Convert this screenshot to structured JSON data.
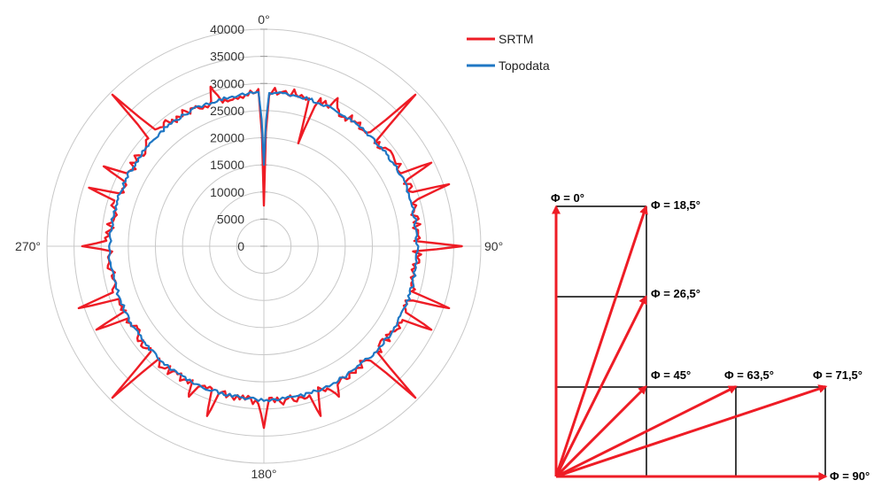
{
  "chart_data": [
    {
      "type": "radar",
      "angle_labels": [
        "0°",
        "90°",
        "180°",
        "270°"
      ],
      "radial_ticks": [
        "0",
        "5000",
        "10000",
        "15000",
        "20000",
        "25000",
        "30000",
        "35000",
        "40000"
      ],
      "rlim": [
        0,
        40000
      ],
      "angle_step_deg": 1,
      "legend_position": "top-right",
      "series": [
        {
          "name": "SRTM",
          "color": "#ee1c25",
          "base_radius": 28500,
          "noise_amplitude": 800,
          "spikes": [
            {
              "angle": 0,
              "radius": 7500
            },
            {
              "angle": 18.5,
              "radius": 20000
            },
            {
              "angle": 26.5,
              "radius": 30500
            },
            {
              "angle": 45,
              "radius": 39500
            },
            {
              "angle": 63.5,
              "radius": 34500
            },
            {
              "angle": 71.5,
              "radius": 36000
            },
            {
              "angle": 90,
              "radius": 36500
            },
            {
              "angle": 108.5,
              "radius": 36000
            },
            {
              "angle": 116.5,
              "radius": 34500
            },
            {
              "angle": 135,
              "radius": 39500
            },
            {
              "angle": 153.5,
              "radius": 31000
            },
            {
              "angle": 161.5,
              "radius": 33000
            },
            {
              "angle": 180,
              "radius": 33500
            },
            {
              "angle": 198.5,
              "radius": 33000
            },
            {
              "angle": 206.5,
              "radius": 31000
            },
            {
              "angle": 225,
              "radius": 39500
            },
            {
              "angle": 243.5,
              "radius": 34500
            },
            {
              "angle": 251.5,
              "radius": 36000
            },
            {
              "angle": 270,
              "radius": 33500
            },
            {
              "angle": 288.5,
              "radius": 34000
            },
            {
              "angle": 296.5,
              "radius": 33000
            },
            {
              "angle": 315,
              "radius": 39500
            },
            {
              "angle": 333.5,
              "radius": 28500
            },
            {
              "angle": 341.5,
              "radius": 31000
            }
          ]
        },
        {
          "name": "Topodata",
          "color": "#1f77c4",
          "base_radius": 28300,
          "noise_amplitude": 300,
          "spikes": [
            {
              "angle": 0,
              "radius": 15000
            }
          ]
        }
      ]
    },
    {
      "type": "vector-diagram",
      "labels": [
        "Φ = 0°",
        "Φ = 18,5°",
        "Φ = 26,5°",
        "Φ = 45°",
        "Φ = 63,5°",
        "Φ = 71,5°",
        "Φ = 90°"
      ],
      "grid_size": 3,
      "vectors": [
        {
          "label": "Φ = 0°",
          "dx": 0,
          "dy": 3
        },
        {
          "label": "Φ = 18,5°",
          "dx": 1,
          "dy": 3
        },
        {
          "label": "Φ = 26,5°",
          "dx": 1,
          "dy": 2
        },
        {
          "label": "Φ = 45°",
          "dx": 1,
          "dy": 1
        },
        {
          "label": "Φ = 63,5°",
          "dx": 2,
          "dy": 1
        },
        {
          "label": "Φ = 71,5°",
          "dx": 3,
          "dy": 1
        },
        {
          "label": "Φ = 90°",
          "dx": 3,
          "dy": 0
        }
      ]
    }
  ]
}
